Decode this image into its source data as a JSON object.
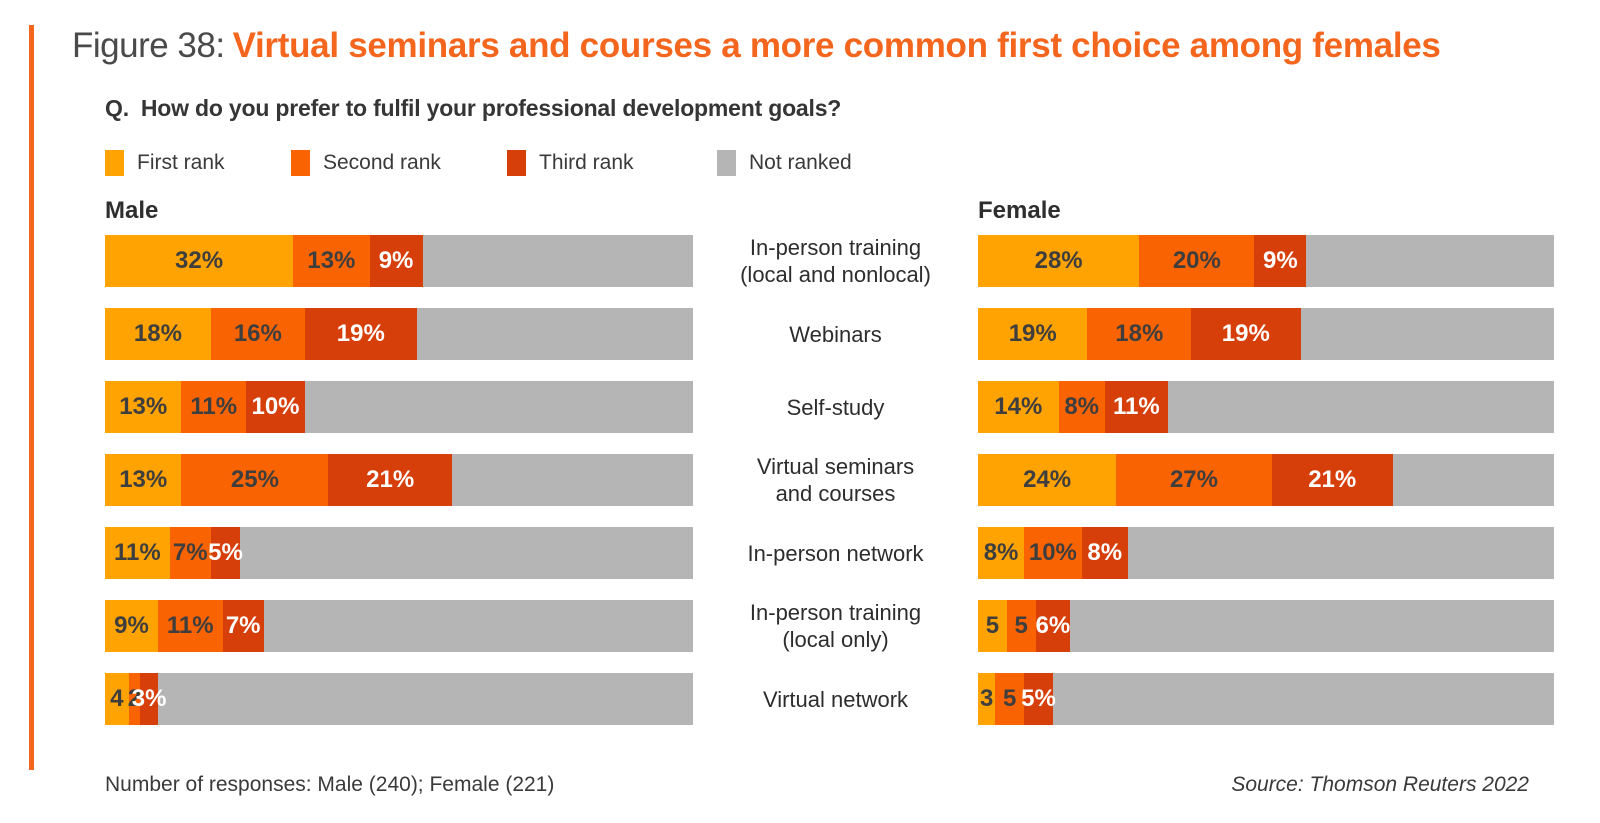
{
  "header": {
    "figure_label": "Figure 38:",
    "title": "Virtual seminars and courses a more common first choice among females",
    "question_prefix": "Q.",
    "question": "How do you prefer to fulfil your professional development goals?"
  },
  "legend": [
    {
      "label": "First rank",
      "color": "#FFA303"
    },
    {
      "label": "Second rank",
      "color": "#F96302"
    },
    {
      "label": "Third rank",
      "color": "#D63E0A"
    },
    {
      "label": "Not ranked",
      "color": "#B5B5B5"
    }
  ],
  "columns": {
    "male_header": "Male",
    "female_header": "Female"
  },
  "footer": {
    "note": "Number of responses: Male (240); Female (221)",
    "source": "Source: Thomson Reuters 2022"
  },
  "colors": {
    "accent_orange": "#F4651D",
    "title_gray": "#4A4A4A",
    "dark_label_on_bar": "#3E3E3E",
    "white_label_on_bar": "#FFFFFF",
    "track_gray": "#B5B5B5"
  },
  "chart_data": {
    "type": "bar",
    "orientation": "horizontal",
    "stacked": true,
    "xlim": [
      0,
      100
    ],
    "grid": false,
    "legend_position": "top",
    "ranks": [
      "First rank",
      "Second rank",
      "Third rank",
      "Not ranked"
    ],
    "categories": [
      "In-person training (local and nonlocal)",
      "Webinars",
      "Self-study",
      "Virtual seminars and courses",
      "In-person network",
      "In-person training (local only)",
      "Virtual network"
    ],
    "series": [
      {
        "name": "Male",
        "first_rank": [
          32,
          18,
          13,
          13,
          11,
          9,
          4
        ],
        "second_rank": [
          13,
          16,
          11,
          25,
          7,
          11,
          2
        ],
        "third_rank": [
          9,
          19,
          10,
          21,
          5,
          7,
          3
        ]
      },
      {
        "name": "Female",
        "first_rank": [
          28,
          19,
          14,
          24,
          8,
          5,
          3
        ],
        "second_rank": [
          20,
          18,
          8,
          27,
          10,
          5,
          5
        ],
        "third_rank": [
          9,
          19,
          11,
          21,
          8,
          6,
          5
        ]
      }
    ],
    "rows": [
      {
        "category_lines": [
          "In-person training",
          "(local and nonlocal)"
        ],
        "male": {
          "values": [
            32,
            13,
            9
          ],
          "labels": [
            "32%",
            "13%",
            "9%"
          ]
        },
        "female": {
          "values": [
            28,
            20,
            9
          ],
          "labels": [
            "28%",
            "20%",
            "9%"
          ]
        }
      },
      {
        "category_lines": [
          "Webinars"
        ],
        "male": {
          "values": [
            18,
            16,
            19
          ],
          "labels": [
            "18%",
            "16%",
            "19%"
          ]
        },
        "female": {
          "values": [
            19,
            18,
            19
          ],
          "labels": [
            "19%",
            "18%",
            "19%"
          ]
        }
      },
      {
        "category_lines": [
          "Self-study"
        ],
        "male": {
          "values": [
            13,
            11,
            10
          ],
          "labels": [
            "13%",
            "11%",
            "10%"
          ]
        },
        "female": {
          "values": [
            14,
            8,
            11
          ],
          "labels": [
            "14%",
            "8%",
            "11%"
          ]
        }
      },
      {
        "category_lines": [
          "Virtual seminars",
          "and courses"
        ],
        "male": {
          "values": [
            13,
            25,
            21
          ],
          "labels": [
            "13%",
            "25%",
            "21%"
          ]
        },
        "female": {
          "values": [
            24,
            27,
            21
          ],
          "labels": [
            "24%",
            "27%",
            "21%"
          ]
        }
      },
      {
        "category_lines": [
          "In-person network"
        ],
        "male": {
          "values": [
            11,
            7,
            5
          ],
          "labels": [
            "11%",
            "7%",
            "5%"
          ]
        },
        "female": {
          "values": [
            8,
            10,
            8
          ],
          "labels": [
            "8%",
            "10%",
            "8%"
          ]
        }
      },
      {
        "category_lines": [
          "In-person training",
          "(local only)"
        ],
        "male": {
          "values": [
            9,
            11,
            7
          ],
          "labels": [
            "9%",
            "11%",
            "7%"
          ]
        },
        "female": {
          "values": [
            5,
            5,
            6
          ],
          "labels": [
            "5",
            "5",
            "6%"
          ]
        }
      },
      {
        "category_lines": [
          "Virtual network"
        ],
        "male": {
          "values": [
            4,
            2,
            3
          ],
          "labels": [
            "4",
            "2",
            "3%"
          ]
        },
        "female": {
          "values": [
            3,
            5,
            5
          ],
          "labels": [
            "3",
            "5",
            "5%"
          ]
        }
      }
    ]
  }
}
